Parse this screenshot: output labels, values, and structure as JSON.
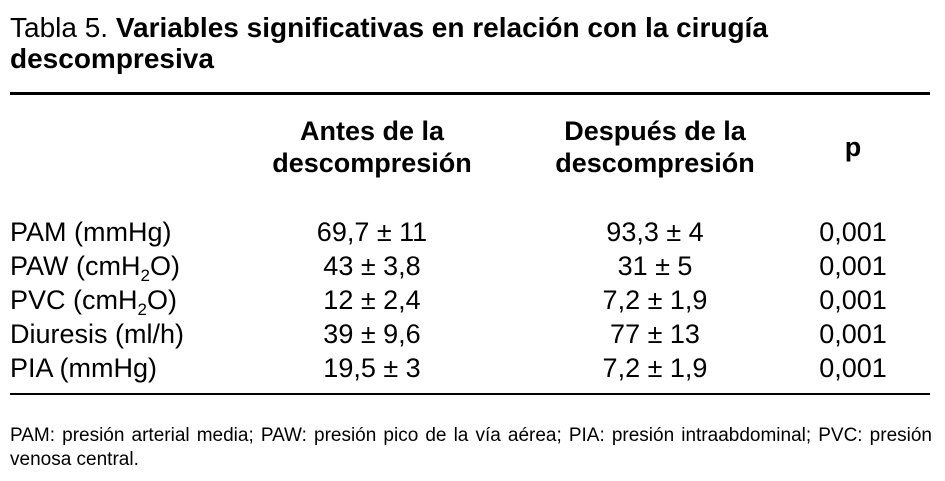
{
  "title": {
    "label": "Tabla 5.",
    "text": "Variables significativas en relación con la cirugía descompresiva"
  },
  "table": {
    "header": [
      "Antes de la descompresión",
      "Después de la descompresión",
      "p"
    ],
    "rows": [
      {
        "label": [
          "PAM (mmHg)"
        ],
        "cells": [
          "69,7 ± 11",
          "93,3 ± 4",
          "0,001"
        ]
      },
      {
        "label": [
          "PAW (cmH",
          "2",
          "O)"
        ],
        "cells": [
          "43 ± 3,8",
          "31 ± 5",
          "0,001"
        ]
      },
      {
        "label": [
          "PVC (cmH",
          "2",
          "O)"
        ],
        "cells": [
          "12 ± 2,4",
          "7,2 ± 1,9",
          "0,001"
        ]
      },
      {
        "label": [
          "Diuresis (ml/h)"
        ],
        "cells": [
          "39 ± 9,6",
          "77 ± 13",
          "0,001"
        ]
      },
      {
        "label": [
          "PIA (mmHg)"
        ],
        "cells": [
          "19,5 ± 3",
          "7,2 ± 1,9",
          "0,001"
        ]
      }
    ]
  },
  "footnote": "PAM: presión arterial media; PAW: presión pico de la vía aérea; PIA: presión intraabdominal; PVC: presión venosa central."
}
